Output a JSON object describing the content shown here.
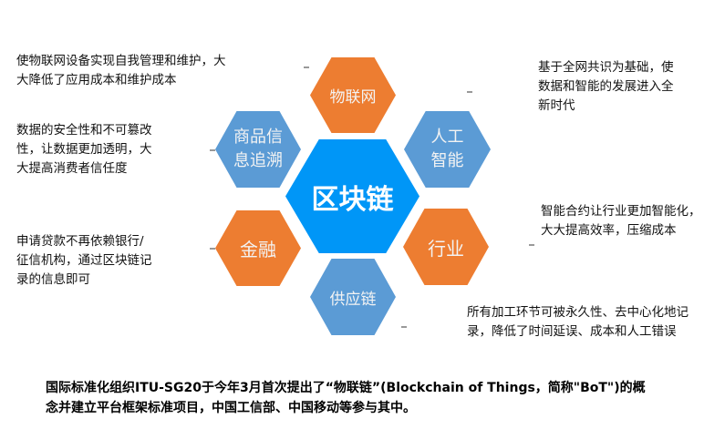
{
  "center": "区块链",
  "hexagons": [
    {
      "label": "物联网",
      "color": "#ed7d31"
    },
    {
      "label_lines": [
        "人工",
        "智能"
      ],
      "color": "#5b9bd5"
    },
    {
      "label": "行业",
      "color": "#ed7d31"
    },
    {
      "label": "供应链",
      "color": "#5b9bd5"
    },
    {
      "label": "金融",
      "color": "#ed7d31"
    },
    {
      "label_lines": [
        "商品信",
        "息追溯"
      ],
      "color": "#5b9bd5"
    }
  ],
  "notes": {
    "iot": [
      "使物联网设备实现自我管理和维护，大",
      "大降低了应用成本和维护成本"
    ],
    "ai": [
      "基于全网共识为基础，使",
      "数据和智能的发展进入全",
      "新时代"
    ],
    "traceability": [
      "数据的安全性和不可篡改",
      "性，让数据更加透明，大",
      "大提高消费者信任度"
    ],
    "industry": [
      "智能合约让行业更加智能化，",
      "大大提高效率，压缩成本"
    ],
    "finance": [
      "申请贷款不再依赖银行/",
      "征信机构，通过区块链记",
      "录的信息即可"
    ],
    "supply_chain": [
      "所有加工环节可被永久性、去中心化地记",
      "录，降低了时间延误、成本和人工错误"
    ]
  },
  "caption": [
    "国际标准化组织ITU-SG20于今年3月首次提出了“物联链”(Blockchain of Things，简称\"BoT\")的概",
    "念并建立平台框架标准项目，中国工信部、中国移动等参与其中。"
  ]
}
